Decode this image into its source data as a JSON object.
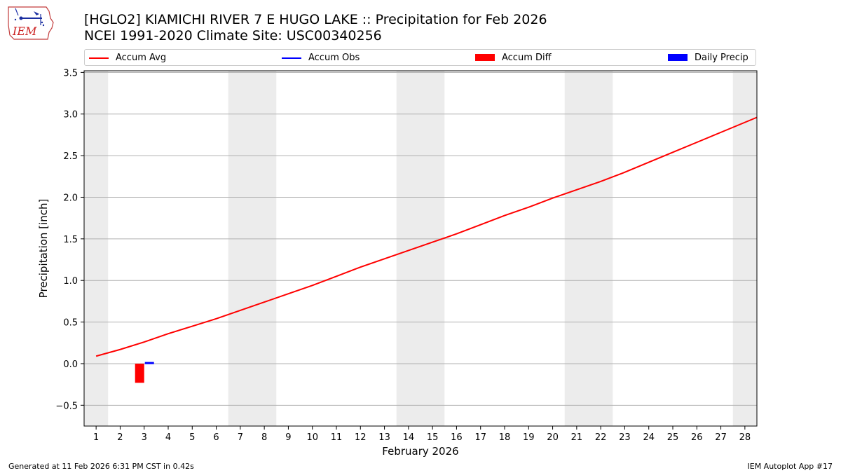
{
  "header": {
    "logo_text": "IEM",
    "title_line1": "[HGLO2] KIAMICHI RIVER 7 E HUGO LAKE :: Precipitation for Feb 2026",
    "title_line2": "NCEI 1991-2020 Climate Site: USC00340256"
  },
  "legend": [
    {
      "label": "Accum Avg",
      "color": "#ff0000",
      "kind": "line"
    },
    {
      "label": "Accum Obs",
      "color": "#0000ff",
      "kind": "line"
    },
    {
      "label": "Accum Diff",
      "color": "#ff0000",
      "kind": "box"
    },
    {
      "label": "Daily Precip",
      "color": "#0000ff",
      "kind": "box"
    }
  ],
  "footer": {
    "left": "Generated at 11 Feb 2026 6:31 PM CST in 0.42s",
    "right": "IEM Autoplot App #17"
  },
  "chart_data": {
    "type": "line",
    "title": "[HGLO2] KIAMICHI RIVER 7 E HUGO LAKE :: Precipitation for Feb 2026",
    "xlabel": "February 2026",
    "ylabel": "Precipitation [inch]",
    "xlim": [
      0.5,
      28.5
    ],
    "ylim": [
      -0.75,
      3.52
    ],
    "x_ticks": [
      1,
      2,
      3,
      4,
      5,
      6,
      7,
      8,
      9,
      10,
      11,
      12,
      13,
      14,
      15,
      16,
      17,
      18,
      19,
      20,
      21,
      22,
      23,
      24,
      25,
      26,
      27,
      28
    ],
    "y_ticks": [
      -0.5,
      0.0,
      0.5,
      1.0,
      1.5,
      2.0,
      2.5,
      3.0,
      3.5
    ],
    "y_tick_labels": [
      "−0.5",
      "0.0",
      "0.5",
      "1.0",
      "1.5",
      "2.0",
      "2.5",
      "3.0",
      "3.5"
    ],
    "weekend_shading": [
      [
        0.5,
        1.5
      ],
      [
        6.5,
        8.5
      ],
      [
        13.5,
        15.5
      ],
      [
        20.5,
        22.5
      ],
      [
        27.5,
        28.5
      ]
    ],
    "shade_color": "#ececec",
    "grid": "horizontal",
    "series": [
      {
        "name": "Accum Avg",
        "type": "line",
        "color": "#ff0000",
        "x": [
          1,
          2,
          3,
          4,
          5,
          6,
          7,
          8,
          9,
          10,
          11,
          12,
          13,
          14,
          15,
          16,
          17,
          18,
          19,
          20,
          21,
          22,
          23,
          24,
          25,
          26,
          27,
          28,
          28.5
        ],
        "values": [
          0.09,
          0.17,
          0.26,
          0.36,
          0.45,
          0.54,
          0.64,
          0.74,
          0.84,
          0.94,
          1.05,
          1.16,
          1.26,
          1.36,
          1.46,
          1.56,
          1.67,
          1.78,
          1.88,
          1.99,
          2.09,
          2.19,
          2.3,
          2.42,
          2.54,
          2.66,
          2.78,
          2.9,
          2.96
        ]
      },
      {
        "name": "Accum Diff",
        "type": "bar",
        "color": "#ff0000",
        "x": [
          3
        ],
        "values": [
          -0.23
        ]
      },
      {
        "name": "Daily Precip",
        "type": "bar",
        "color": "#0000ff",
        "x": [
          3
        ],
        "values": [
          0.02
        ]
      }
    ]
  }
}
